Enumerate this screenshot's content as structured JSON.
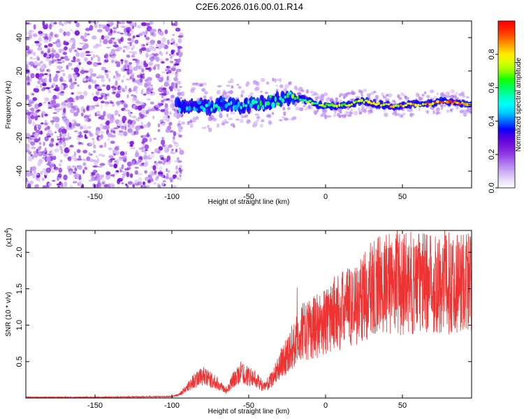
{
  "title": "C2E6.2026.016.00.01.R14",
  "colors": {
    "snr_line": "#ee3333",
    "axis": "#000000",
    "colormap": [
      "#ffffff",
      "#dcc8f8",
      "#b27cf0",
      "#8a2be2",
      "#6a00d8",
      "#0000ff",
      "#00b4ff",
      "#00ffff",
      "#00ff9a",
      "#00ff00",
      "#b4ff00",
      "#ffff00",
      "#ffa000",
      "#ff3300",
      "#ff0000"
    ]
  },
  "chart_data": [
    {
      "type": "heatmap",
      "name": "spectrogram",
      "title": "C2E6.2026.016.00.01.R14",
      "xlabel": "Height of straight line (km)",
      "ylabel": "Frequency (Hz)",
      "xlim": [
        -195,
        95
      ],
      "ylim": [
        -50,
        50
      ],
      "xticks": [
        -150,
        -100,
        -50,
        0,
        50
      ],
      "yticks": [
        -40,
        -20,
        0,
        20,
        40
      ],
      "noise_region_km": [
        -195,
        -98
      ],
      "signal_track": [
        {
          "x": -95,
          "y": -1
        },
        {
          "x": -85,
          "y": 0
        },
        {
          "x": -75,
          "y": -2
        },
        {
          "x": -65,
          "y": 1
        },
        {
          "x": -55,
          "y": -1
        },
        {
          "x": -45,
          "y": 0
        },
        {
          "x": -35,
          "y": 2
        },
        {
          "x": -25,
          "y": 4
        },
        {
          "x": -15,
          "y": 3
        },
        {
          "x": -5,
          "y": 0
        },
        {
          "x": 5,
          "y": -1
        },
        {
          "x": 15,
          "y": 0
        },
        {
          "x": 25,
          "y": 2
        },
        {
          "x": 35,
          "y": 0
        },
        {
          "x": 45,
          "y": -1
        },
        {
          "x": 55,
          "y": 0
        },
        {
          "x": 65,
          "y": 0
        },
        {
          "x": 75,
          "y": 2
        },
        {
          "x": 85,
          "y": 1
        },
        {
          "x": 95,
          "y": 0
        }
      ],
      "colorbar": {
        "label": "Normalized spectral amplitude",
        "range": [
          0.0,
          1.0
        ],
        "ticks": [
          {
            "value": 0.0,
            "label": "0.0"
          },
          {
            "value": 0.2,
            "label": "0.2"
          },
          {
            "value": 0.4,
            "label": "0.4"
          },
          {
            "value": 0.6,
            "label": "0.6"
          },
          {
            "value": 0.8,
            "label": "0.8"
          }
        ]
      }
    },
    {
      "type": "line",
      "name": "snr",
      "xlabel": "Height of straight line (km)",
      "ylabel": "SNR (10 * v/v)",
      "exponent_label": "(x10",
      "exponent_power": "4",
      "exponent_close": ")",
      "xlim": [
        -195,
        95
      ],
      "ylim": [
        0,
        2.3
      ],
      "xticks": [
        -150,
        -100,
        -50,
        0,
        50
      ],
      "yticks": [
        0.5,
        1.0,
        1.5,
        2.0
      ],
      "ytick_labels": [
        "0.5",
        "1.0",
        "1.5",
        "2.0"
      ],
      "series": [
        {
          "name": "SNR",
          "x": [
            -195,
            -150,
            -100,
            -95,
            -90,
            -85,
            -80,
            -75,
            -70,
            -65,
            -60,
            -55,
            -50,
            -45,
            -40,
            -35,
            -30,
            -25,
            -20,
            -15,
            -10,
            -5,
            0,
            5,
            10,
            15,
            20,
            25,
            30,
            35,
            40,
            45,
            50,
            55,
            60,
            65,
            70,
            75,
            80,
            85,
            90,
            95
          ],
          "y": [
            0.01,
            0.01,
            0.02,
            0.05,
            0.15,
            0.25,
            0.3,
            0.25,
            0.2,
            0.1,
            0.25,
            0.35,
            0.3,
            0.25,
            0.15,
            0.25,
            0.45,
            0.6,
            0.75,
            0.9,
            0.95,
            1.0,
            1.05,
            1.15,
            1.2,
            1.25,
            1.3,
            1.4,
            1.5,
            1.55,
            1.55,
            1.6,
            1.55,
            1.58,
            1.57,
            1.6,
            1.58,
            1.6,
            1.58,
            1.6,
            1.6,
            1.6
          ]
        }
      ]
    }
  ]
}
